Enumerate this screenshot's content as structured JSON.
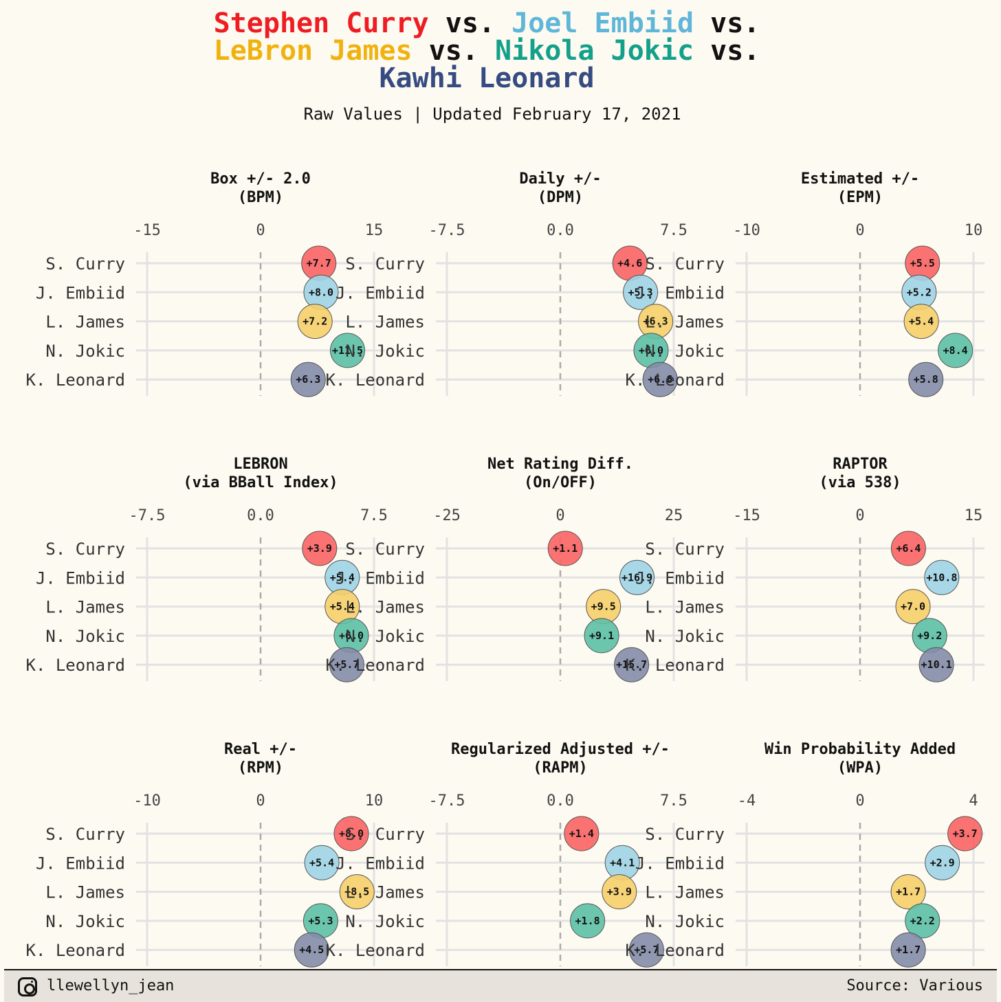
{
  "title": {
    "lines": [
      [
        {
          "text": "Stephen Curry",
          "color": "#ee1d23"
        },
        {
          "text": " vs. ",
          "color": "#111111"
        },
        {
          "text": "Joel Embiid",
          "color": "#5fb6d9"
        },
        {
          "text": " vs.",
          "color": "#111111"
        }
      ],
      [
        {
          "text": "LeBron James",
          "color": "#f0b20f"
        },
        {
          "text": " vs. ",
          "color": "#111111"
        },
        {
          "text": "Nikola Jokic",
          "color": "#13a08a"
        },
        {
          "text": " vs.",
          "color": "#111111"
        }
      ],
      [
        {
          "text": "Kawhi Leonard",
          "color": "#364b82"
        }
      ]
    ]
  },
  "subtitle": "Raw Values | Updated February 17, 2021",
  "players": [
    "S. Curry",
    "J. Embiid",
    "L. James",
    "N. Jokic",
    "K. Leonard"
  ],
  "player_colors": [
    "#f96363",
    "#9fd4e6",
    "#f6cf6a",
    "#5cc0a6",
    "#848ca9"
  ],
  "chart_data": [
    {
      "type": "scatter",
      "title": [
        "Box +/- 2.0",
        "(BPM)"
      ],
      "xlim": [
        -15,
        15
      ],
      "ticks": [
        "-15",
        "0",
        "15"
      ],
      "values": [
        7.7,
        8.0,
        7.2,
        11.5,
        6.3
      ],
      "labels": [
        "+7.7",
        "+8.0",
        "+7.2",
        "+11.5",
        "+6.3"
      ]
    },
    {
      "type": "scatter",
      "title": [
        "Daily +/-",
        "(DPM)"
      ],
      "xlim": [
        -7.5,
        7.5
      ],
      "ticks": [
        "-7.5",
        "0.0",
        "7.5"
      ],
      "values": [
        4.6,
        5.3,
        6.3,
        6.0,
        6.6
      ],
      "labels": [
        "+4.6",
        "+5.3",
        "+6.3",
        "+6.0",
        "+6.6"
      ]
    },
    {
      "type": "scatter",
      "title": [
        "Estimated +/-",
        "(EPM)"
      ],
      "xlim": [
        -10,
        10
      ],
      "ticks": [
        "-10",
        "0",
        "10"
      ],
      "values": [
        5.5,
        5.2,
        5.4,
        8.4,
        5.8
      ],
      "labels": [
        "+5.5",
        "+5.2",
        "+5.4",
        "+8.4",
        "+5.8"
      ]
    },
    {
      "type": "scatter",
      "title": [
        "LEBRON",
        "(via BBall Index)"
      ],
      "xlim": [
        -7.5,
        7.5
      ],
      "ticks": [
        "-7.5",
        "0.0",
        "7.5"
      ],
      "values": [
        3.9,
        5.4,
        5.4,
        6.0,
        5.7
      ],
      "labels": [
        "+3.9",
        "+5.4",
        "+5.4",
        "+6.0",
        "+5.7"
      ]
    },
    {
      "type": "scatter",
      "title": [
        "Net Rating Diff.",
        "(On/OFF)"
      ],
      "xlim": [
        -25,
        25
      ],
      "ticks": [
        "-25",
        "0",
        "25"
      ],
      "values": [
        1.1,
        16.9,
        9.5,
        9.1,
        15.7
      ],
      "labels": [
        "+1.1",
        "+16.9",
        "+9.5",
        "+9.1",
        "+15.7"
      ]
    },
    {
      "type": "scatter",
      "title": [
        "RAPTOR",
        "(via 538)"
      ],
      "xlim": [
        -15,
        15
      ],
      "ticks": [
        "-15",
        "0",
        "15"
      ],
      "values": [
        6.4,
        10.8,
        7.0,
        9.2,
        10.1
      ],
      "labels": [
        "+6.4",
        "+10.8",
        "+7.0",
        "+9.2",
        "+10.1"
      ]
    },
    {
      "type": "scatter",
      "title": [
        "Real +/-",
        "(RPM)"
      ],
      "xlim": [
        -10,
        10
      ],
      "ticks": [
        "-10",
        "0",
        "10"
      ],
      "values": [
        8.0,
        5.4,
        8.5,
        5.3,
        4.5
      ],
      "labels": [
        "+8.0",
        "+5.4",
        "+8.5",
        "+5.3",
        "+4.5"
      ]
    },
    {
      "type": "scatter",
      "title": [
        "Regularized Adjusted +/-",
        "(RAPM)"
      ],
      "xlim": [
        -7.5,
        7.5
      ],
      "ticks": [
        "-7.5",
        "0.0",
        "7.5"
      ],
      "values": [
        1.4,
        4.1,
        3.9,
        1.8,
        5.7
      ],
      "labels": [
        "+1.4",
        "+4.1",
        "+3.9",
        "+1.8",
        "+5.7"
      ]
    },
    {
      "type": "scatter",
      "title": [
        "Win Probability Added",
        "(WPA)"
      ],
      "xlim": [
        -4,
        4
      ],
      "ticks": [
        "-4",
        "0",
        "4"
      ],
      "values": [
        3.7,
        2.9,
        1.7,
        2.2,
        1.7
      ],
      "labels": [
        "+3.7",
        "+2.9",
        "+1.7",
        "+2.2",
        "+1.7"
      ]
    }
  ],
  "footer": {
    "handle": "llewellyn_jean",
    "source": "Source: Various",
    "icon": "instagram-icon"
  }
}
